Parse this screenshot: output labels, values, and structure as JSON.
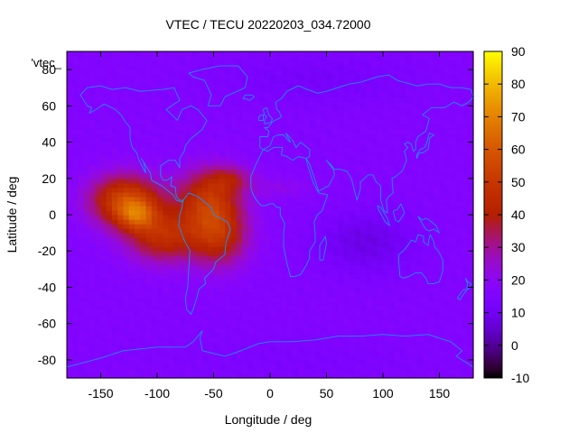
{
  "chart_data": {
    "type": "heatmap",
    "title": "VTEC / TECU 20220203_034.72000",
    "xlabel": "Longitude / deg",
    "ylabel": "Latitude / deg",
    "key_label": "'vtec_",
    "xlim": [
      -180,
      180
    ],
    "ylim": [
      -90,
      90
    ],
    "xticks": [
      -150,
      -100,
      -50,
      0,
      50,
      100,
      150
    ],
    "yticks": [
      -80,
      -60,
      -40,
      -20,
      0,
      20,
      40,
      60,
      80
    ],
    "colorbar": {
      "range": [
        -10,
        90
      ],
      "ticks": [
        -10,
        0,
        10,
        20,
        30,
        40,
        50,
        60,
        70,
        80,
        90
      ]
    },
    "grid_resolution_deg": [
      5,
      2.5
    ],
    "background_value": 16,
    "anomaly_components": [
      {
        "lon": -128,
        "lat": 8,
        "sigma_lon": 22,
        "sigma_lat": 10,
        "amplitude": 38
      },
      {
        "lon": -118,
        "lat": 0,
        "sigma_lon": 12,
        "sigma_lat": 6,
        "amplitude": 22
      },
      {
        "lon": -95,
        "lat": -12,
        "sigma_lon": 22,
        "sigma_lat": 10,
        "amplitude": 28
      },
      {
        "lon": -55,
        "lat": 8,
        "sigma_lon": 20,
        "sigma_lat": 12,
        "amplitude": 30
      },
      {
        "lon": -45,
        "lat": -12,
        "sigma_lon": 18,
        "sigma_lat": 12,
        "amplitude": 26
      },
      {
        "lon": -35,
        "lat": 20,
        "sigma_lon": 14,
        "sigma_lat": 5,
        "amplitude": 14
      },
      {
        "lon": 10,
        "lat": 15,
        "sigma_lon": 18,
        "sigma_lat": 4,
        "amplitude": 5
      },
      {
        "lon": 85,
        "lat": -15,
        "sigma_lon": 30,
        "sigma_lat": 12,
        "amplitude": -8
      },
      {
        "lon": 40,
        "lat": 75,
        "sigma_lon": 60,
        "sigma_lat": 10,
        "amplitude": -4
      },
      {
        "lon": 20,
        "lat": -80,
        "sigma_lon": 80,
        "sigma_lat": 8,
        "amplitude": -2
      }
    ],
    "coastline_color": "#1e8cff",
    "palette": "gnuplot"
  }
}
